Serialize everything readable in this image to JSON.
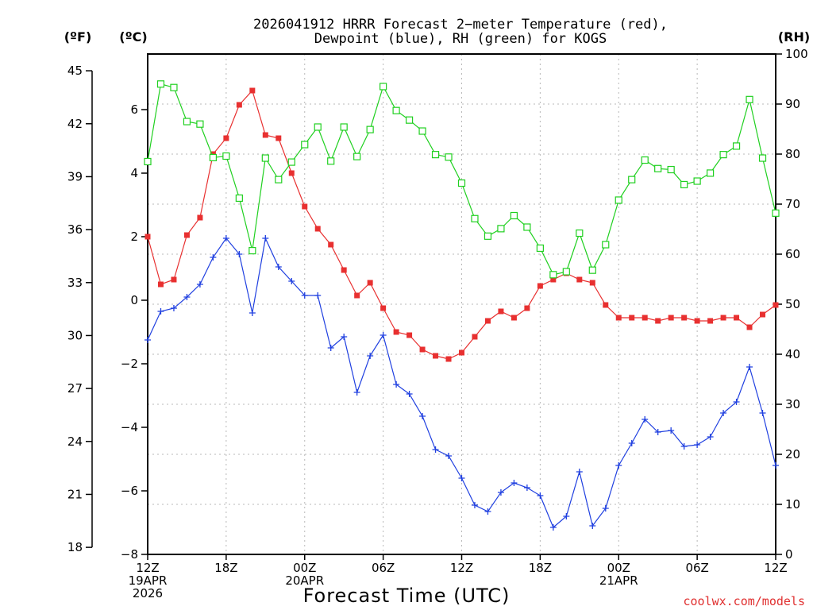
{
  "chart_data": {
    "type": "line",
    "title_lines": [
      "2026041912 HRRR Forecast 2−meter Temperature (red),",
      "Dewpoint (blue), RH (green) for KOGS"
    ],
    "xlabel": "Forecast Time (UTC)",
    "credit": "coolwx.com/models",
    "units": {
      "fahrenheit": "(ºF)",
      "celsius": "(ºC)",
      "rh": "(RH)"
    },
    "x_range": [
      0,
      48
    ],
    "x_ticks": [
      {
        "x": 0,
        "lines": [
          "12Z",
          "19APR",
          "2026"
        ]
      },
      {
        "x": 6,
        "lines": [
          "18Z"
        ]
      },
      {
        "x": 12,
        "lines": [
          "00Z",
          "20APR"
        ]
      },
      {
        "x": 18,
        "lines": [
          "06Z"
        ]
      },
      {
        "x": 24,
        "lines": [
          "12Z"
        ]
      },
      {
        "x": 30,
        "lines": [
          "18Z"
        ]
      },
      {
        "x": 36,
        "lines": [
          "00Z",
          "21APR"
        ]
      },
      {
        "x": 42,
        "lines": [
          "06Z"
        ]
      },
      {
        "x": 48,
        "lines": [
          "12Z"
        ]
      }
    ],
    "ylim_celsius": [
      -8,
      7.75
    ],
    "y_ticks_celsius": [
      "−8",
      "−6",
      "−4",
      "−2",
      "0",
      "2",
      "4",
      "6"
    ],
    "y_ticks_fahrenheit": [
      "18",
      "21",
      "24",
      "27",
      "30",
      "33",
      "36",
      "39",
      "42",
      "45"
    ],
    "ylim_rh": [
      0,
      100
    ],
    "y_ticks_rh": [
      "0",
      "10",
      "20",
      "30",
      "40",
      "50",
      "60",
      "70",
      "80",
      "90",
      "100"
    ],
    "series": [
      {
        "name": "Temperature",
        "axis": "celsius",
        "color": "#e83030",
        "marker": "filled-square",
        "values": [
          2.0,
          0.5,
          0.65,
          2.05,
          2.6,
          4.6,
          5.1,
          6.15,
          6.6,
          5.2,
          5.1,
          4.0,
          2.95,
          2.25,
          1.75,
          0.95,
          0.15,
          0.55,
          -0.25,
          -1.0,
          -1.1,
          -1.55,
          -1.75,
          -1.85,
          -1.65,
          -1.15,
          -0.65,
          -0.35,
          -0.55,
          -0.25,
          0.45,
          0.65,
          0.85,
          0.65,
          0.55,
          -0.15,
          -0.55,
          -0.55,
          -0.55,
          -0.65,
          -0.55,
          -0.55,
          -0.65,
          -0.65,
          -0.55,
          -0.55,
          -0.85,
          -0.45,
          -0.15
        ]
      },
      {
        "name": "Dewpoint",
        "axis": "celsius",
        "color": "#2040e0",
        "marker": "plus",
        "values": [
          -1.25,
          -0.35,
          -0.25,
          0.1,
          0.5,
          1.35,
          1.95,
          1.45,
          -0.4,
          1.95,
          1.05,
          0.6,
          0.15,
          0.15,
          -1.5,
          -1.15,
          -2.9,
          -1.75,
          -1.1,
          -2.65,
          -2.95,
          -3.65,
          -4.7,
          -4.9,
          -5.6,
          -6.45,
          -6.65,
          -6.05,
          -5.75,
          -5.9,
          -6.15,
          -7.15,
          -6.8,
          -5.4,
          -7.1,
          -6.55,
          -5.2,
          -4.5,
          -3.75,
          -4.15,
          -4.1,
          -4.6,
          -4.55,
          -4.3,
          -3.55,
          -3.2,
          -2.1,
          -3.55,
          -5.2
        ]
      },
      {
        "name": "RH",
        "axis": "rh",
        "color": "#20d020",
        "marker": "open-square",
        "values": [
          78.5,
          94,
          93.3,
          86.5,
          86,
          79.3,
          79.6,
          71.2,
          60.7,
          79.2,
          74.9,
          78.4,
          81.9,
          85.4,
          78.6,
          85.4,
          79.5,
          84.9,
          93.5,
          88.7,
          86.8,
          84.6,
          79.9,
          79.4,
          74.2,
          67.1,
          63.6,
          65.1,
          67.7,
          65.4,
          61.2,
          55.9,
          56.5,
          64.2,
          56.8,
          61.9,
          70.8,
          74.9,
          78.8,
          77.1,
          76.9,
          73.9,
          74.6,
          76.2,
          79.9,
          81.6,
          90.9,
          79.2,
          68.2
        ]
      }
    ]
  }
}
